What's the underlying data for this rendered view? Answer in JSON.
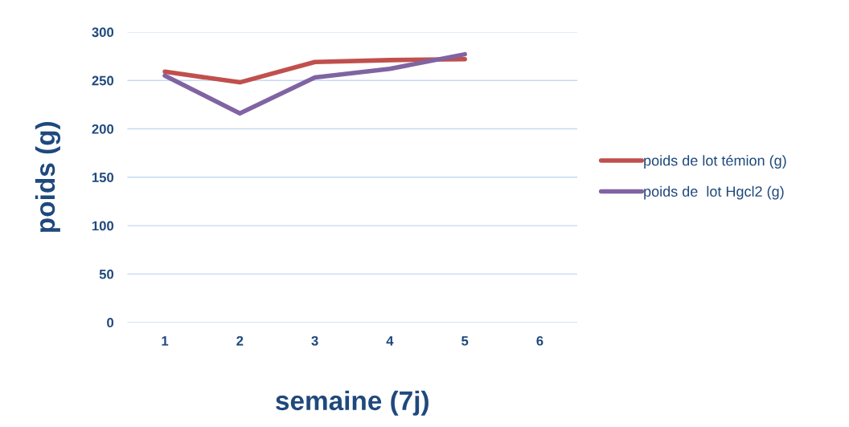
{
  "chart_data": {
    "type": "line",
    "xlabel": "semaine (7j)",
    "ylabel": "poids (g)",
    "categories": [
      "1",
      "2",
      "3",
      "4",
      "5",
      "6"
    ],
    "series": [
      {
        "name": "poids de lot témion (g)",
        "color": "#c0504d",
        "values": [
          259,
          248,
          269,
          271,
          272,
          null
        ]
      },
      {
        "name": "poids de  lot Hgcl2 (g)",
        "color": "#8064a2",
        "values": [
          255,
          216,
          253,
          262,
          277,
          null
        ]
      }
    ],
    "ylim": [
      0,
      300
    ],
    "yticks": [
      0,
      50,
      100,
      150,
      200,
      250,
      300
    ],
    "grid": "y",
    "legend": "right",
    "marker": "none",
    "line_style": "solid"
  }
}
